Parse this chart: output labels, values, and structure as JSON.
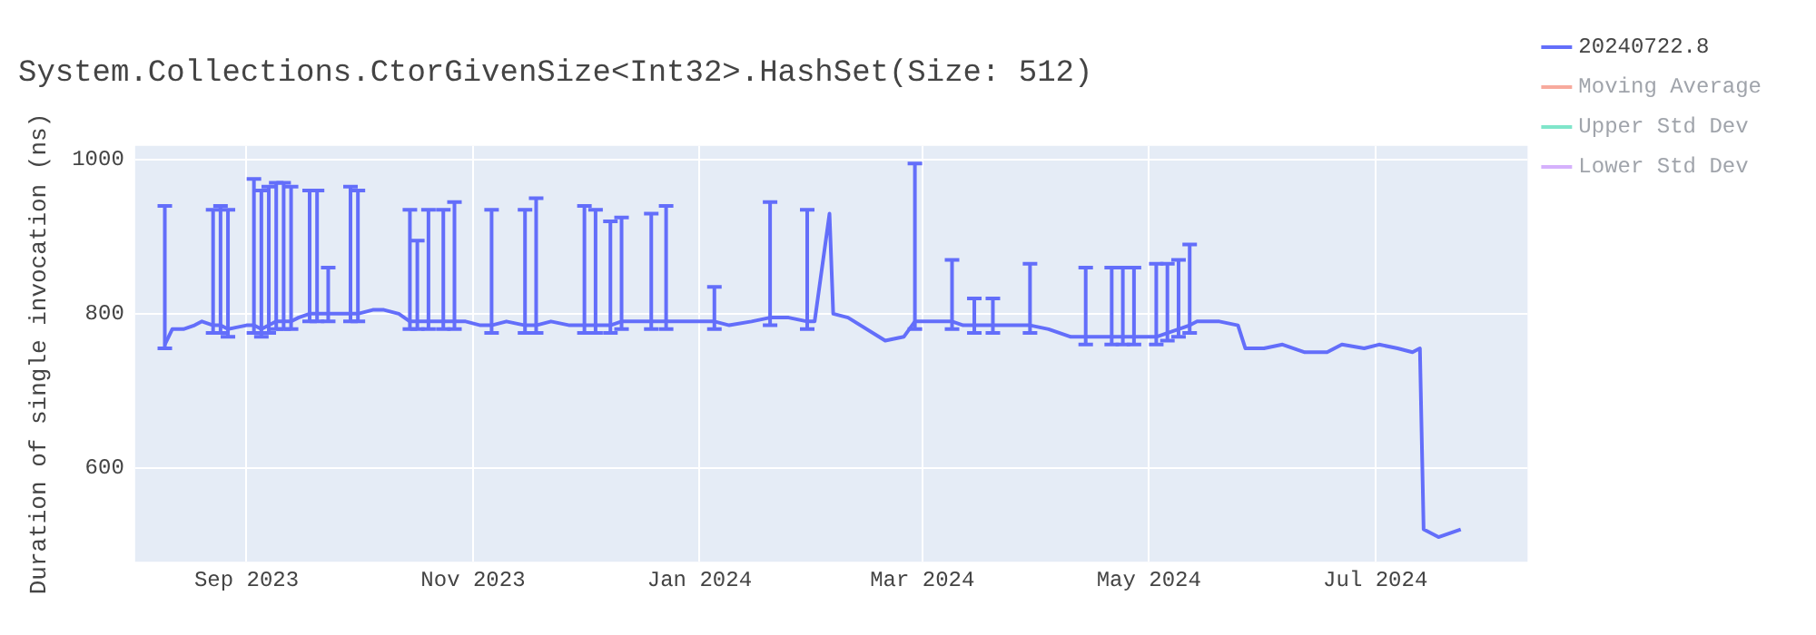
{
  "chart_data": {
    "type": "line",
    "title": "System.Collections.CtorGivenSize<Int32>.HashSet(Size: 512)",
    "ylabel": "Duration of single invocation (ns)",
    "x": [
      "2023-08-10",
      "2023-08-12",
      "2023-08-15",
      "2023-08-18",
      "2023-08-20",
      "2023-08-23",
      "2023-08-25",
      "2023-08-27",
      "2023-08-29",
      "2023-09-01",
      "2023-09-03",
      "2023-09-05",
      "2023-09-07",
      "2023-09-09",
      "2023-09-11",
      "2023-09-13",
      "2023-09-15",
      "2023-09-18",
      "2023-09-20",
      "2023-09-23",
      "2023-09-26",
      "2023-09-29",
      "2023-10-01",
      "2023-10-05",
      "2023-10-08",
      "2023-10-12",
      "2023-10-15",
      "2023-10-17",
      "2023-10-20",
      "2023-10-24",
      "2023-10-27",
      "2023-10-30",
      "2023-11-03",
      "2023-11-06",
      "2023-11-10",
      "2023-11-15",
      "2023-11-18",
      "2023-11-22",
      "2023-11-27",
      "2023-12-01",
      "2023-12-04",
      "2023-12-08",
      "2023-12-11",
      "2023-12-15",
      "2023-12-19",
      "2023-12-23",
      "2023-12-27",
      "2024-01-02",
      "2024-01-05",
      "2024-01-09",
      "2024-01-15",
      "2024-01-20",
      "2024-01-25",
      "2024-01-30",
      "2024-02-01",
      "2024-02-05",
      "2024-02-06",
      "2024-02-10",
      "2024-02-20",
      "2024-02-25",
      "2024-02-28",
      "2024-03-02",
      "2024-03-05",
      "2024-03-09",
      "2024-03-12",
      "2024-03-15",
      "2024-03-20",
      "2024-03-25",
      "2024-03-30",
      "2024-04-04",
      "2024-04-10",
      "2024-04-14",
      "2024-04-18",
      "2024-04-21",
      "2024-04-24",
      "2024-04-27",
      "2024-05-01",
      "2024-05-03",
      "2024-05-06",
      "2024-05-09",
      "2024-05-12",
      "2024-05-14",
      "2024-05-20",
      "2024-05-25",
      "2024-05-27",
      "2024-06-01",
      "2024-06-06",
      "2024-06-12",
      "2024-06-18",
      "2024-06-22",
      "2024-06-28",
      "2024-07-02",
      "2024-07-07",
      "2024-07-11",
      "2024-07-13",
      "2024-07-14",
      "2024-07-18",
      "2024-07-21",
      "2024-07-24"
    ],
    "series": [
      {
        "name": "20240722.8",
        "color": "#636efa",
        "values": [
          760,
          780,
          780,
          785,
          790,
          785,
          785,
          780,
          782,
          785,
          785,
          780,
          785,
          790,
          790,
          790,
          795,
          800,
          800,
          800,
          800,
          800,
          800,
          805,
          805,
          800,
          790,
          790,
          790,
          790,
          790,
          790,
          785,
          785,
          790,
          785,
          785,
          790,
          785,
          785,
          785,
          785,
          790,
          790,
          790,
          790,
          790,
          790,
          790,
          785,
          790,
          795,
          795,
          790,
          790,
          930,
          800,
          795,
          765,
          770,
          790,
          790,
          790,
          790,
          785,
          785,
          785,
          785,
          785,
          780,
          770,
          770,
          770,
          770,
          770,
          770,
          770,
          770,
          775,
          780,
          785,
          790,
          790,
          785,
          755,
          755,
          760,
          750,
          750,
          760,
          755,
          760,
          755,
          750,
          755,
          520,
          510,
          515,
          520
        ],
        "errors": [
          [
            755,
            940
          ],
          null,
          null,
          null,
          null,
          [
            775,
            935
          ],
          [
            775,
            940
          ],
          [
            770,
            935
          ],
          null,
          null,
          [
            775,
            975
          ],
          [
            770,
            960
          ],
          [
            775,
            965
          ],
          [
            780,
            970
          ],
          [
            780,
            970
          ],
          [
            780,
            965
          ],
          null,
          [
            790,
            960
          ],
          [
            790,
            960
          ],
          [
            790,
            860
          ],
          null,
          [
            790,
            965
          ],
          [
            790,
            960
          ],
          null,
          null,
          null,
          [
            780,
            935
          ],
          [
            780,
            895
          ],
          [
            780,
            935
          ],
          [
            780,
            935
          ],
          [
            780,
            945
          ],
          null,
          null,
          [
            775,
            935
          ],
          null,
          [
            775,
            935
          ],
          [
            775,
            950
          ],
          null,
          null,
          [
            775,
            940
          ],
          [
            775,
            935
          ],
          [
            775,
            920
          ],
          [
            780,
            925
          ],
          null,
          [
            780,
            930
          ],
          [
            780,
            940
          ],
          null,
          null,
          [
            780,
            835
          ],
          null,
          null,
          [
            785,
            945
          ],
          null,
          [
            780,
            935
          ],
          null,
          null,
          null,
          null,
          null,
          null,
          [
            780,
            995
          ],
          null,
          null,
          [
            780,
            870
          ],
          null,
          [
            775,
            820
          ],
          [
            775,
            820
          ],
          null,
          [
            775,
            865
          ],
          null,
          null,
          [
            760,
            860
          ],
          null,
          [
            760,
            860
          ],
          [
            760,
            860
          ],
          [
            760,
            860
          ],
          null,
          [
            760,
            865
          ],
          [
            765,
            865
          ],
          [
            770,
            870
          ],
          [
            775,
            890
          ],
          null,
          null,
          null,
          null,
          null,
          null,
          null,
          null,
          null,
          null,
          null,
          null,
          null,
          null,
          null,
          null,
          null,
          null
        ]
      },
      {
        "name": "Moving Average",
        "color": "#ef553b",
        "values": [
          null,
          null,
          null,
          null,
          null,
          null,
          null,
          null,
          null,
          null,
          null,
          null,
          null,
          null,
          null,
          null,
          null,
          null,
          null,
          null,
          null,
          null,
          null,
          null,
          null,
          null,
          null,
          null,
          null,
          null,
          null,
          null,
          null,
          null,
          null,
          null,
          null,
          null,
          null,
          null,
          null,
          null,
          null,
          null,
          null,
          null,
          null,
          null,
          null,
          null,
          null,
          null,
          null,
          null,
          null,
          null,
          null,
          null,
          null,
          null,
          null,
          null,
          null,
          null,
          null,
          null,
          null,
          null,
          null,
          null,
          null,
          null,
          null,
          null,
          null,
          null,
          null,
          null,
          null,
          null,
          null,
          null,
          null,
          null,
          null,
          null,
          null,
          null,
          null,
          null,
          null,
          null,
          null,
          null,
          null,
          null,
          null,
          null,
          null
        ]
      },
      {
        "name": "Upper Std Dev",
        "color": "#00cc96",
        "values": [
          null,
          null,
          null,
          null,
          null,
          null,
          null,
          null,
          null,
          null,
          null,
          null,
          null,
          null,
          null,
          null,
          null,
          null,
          null,
          null,
          null,
          null,
          null,
          null,
          null,
          null,
          null,
          null,
          null,
          null,
          null,
          null,
          null,
          null,
          null,
          null,
          null,
          null,
          null,
          null,
          null,
          null,
          null,
          null,
          null,
          null,
          null,
          null,
          null,
          null,
          null,
          null,
          null,
          null,
          null,
          null,
          null,
          null,
          null,
          null,
          null,
          null,
          null,
          null,
          null,
          null,
          null,
          null,
          null,
          null,
          null,
          null,
          null,
          null,
          null,
          null,
          null,
          null,
          null,
          null,
          null,
          null,
          null,
          null,
          null,
          null,
          null,
          null,
          null,
          null,
          null,
          null,
          null,
          null,
          null,
          null,
          null,
          null,
          null
        ]
      },
      {
        "name": "Lower Std Dev",
        "color": "#ab63fa",
        "values": [
          null,
          null,
          null,
          null,
          null,
          null,
          null,
          null,
          null,
          null,
          null,
          null,
          null,
          null,
          null,
          null,
          null,
          null,
          null,
          null,
          null,
          null,
          null,
          null,
          null,
          null,
          null,
          null,
          null,
          null,
          null,
          null,
          null,
          null,
          null,
          null,
          null,
          null,
          null,
          null,
          null,
          null,
          null,
          null,
          null,
          null,
          null,
          null,
          null,
          null,
          null,
          null,
          null,
          null,
          null,
          null,
          null,
          null,
          null,
          null,
          null,
          null,
          null,
          null,
          null,
          null,
          null,
          null,
          null,
          null,
          null,
          null,
          null,
          null,
          null,
          null,
          null,
          null,
          null,
          null,
          null,
          null,
          null,
          null,
          null,
          null,
          null,
          null,
          null,
          null,
          null,
          null,
          null,
          null,
          null,
          null,
          null,
          null,
          null
        ]
      }
    ],
    "xlim": [
      "2023-08-02",
      "2024-08-11"
    ],
    "xticks": [
      {
        "value": "2023-09-01",
        "label": "Sep 2023"
      },
      {
        "value": "2023-11-01",
        "label": "Nov 2023"
      },
      {
        "value": "2024-01-01",
        "label": "Jan 2024"
      },
      {
        "value": "2024-03-01",
        "label": "Mar 2024"
      },
      {
        "value": "2024-05-01",
        "label": "May 2024"
      },
      {
        "value": "2024-07-01",
        "label": "Jul 2024"
      }
    ],
    "ylim": [
      478,
      1018
    ],
    "yticks": [
      600,
      800,
      1000
    ],
    "grid": true,
    "legend": "right",
    "line_style": "solid",
    "marker": "none"
  }
}
